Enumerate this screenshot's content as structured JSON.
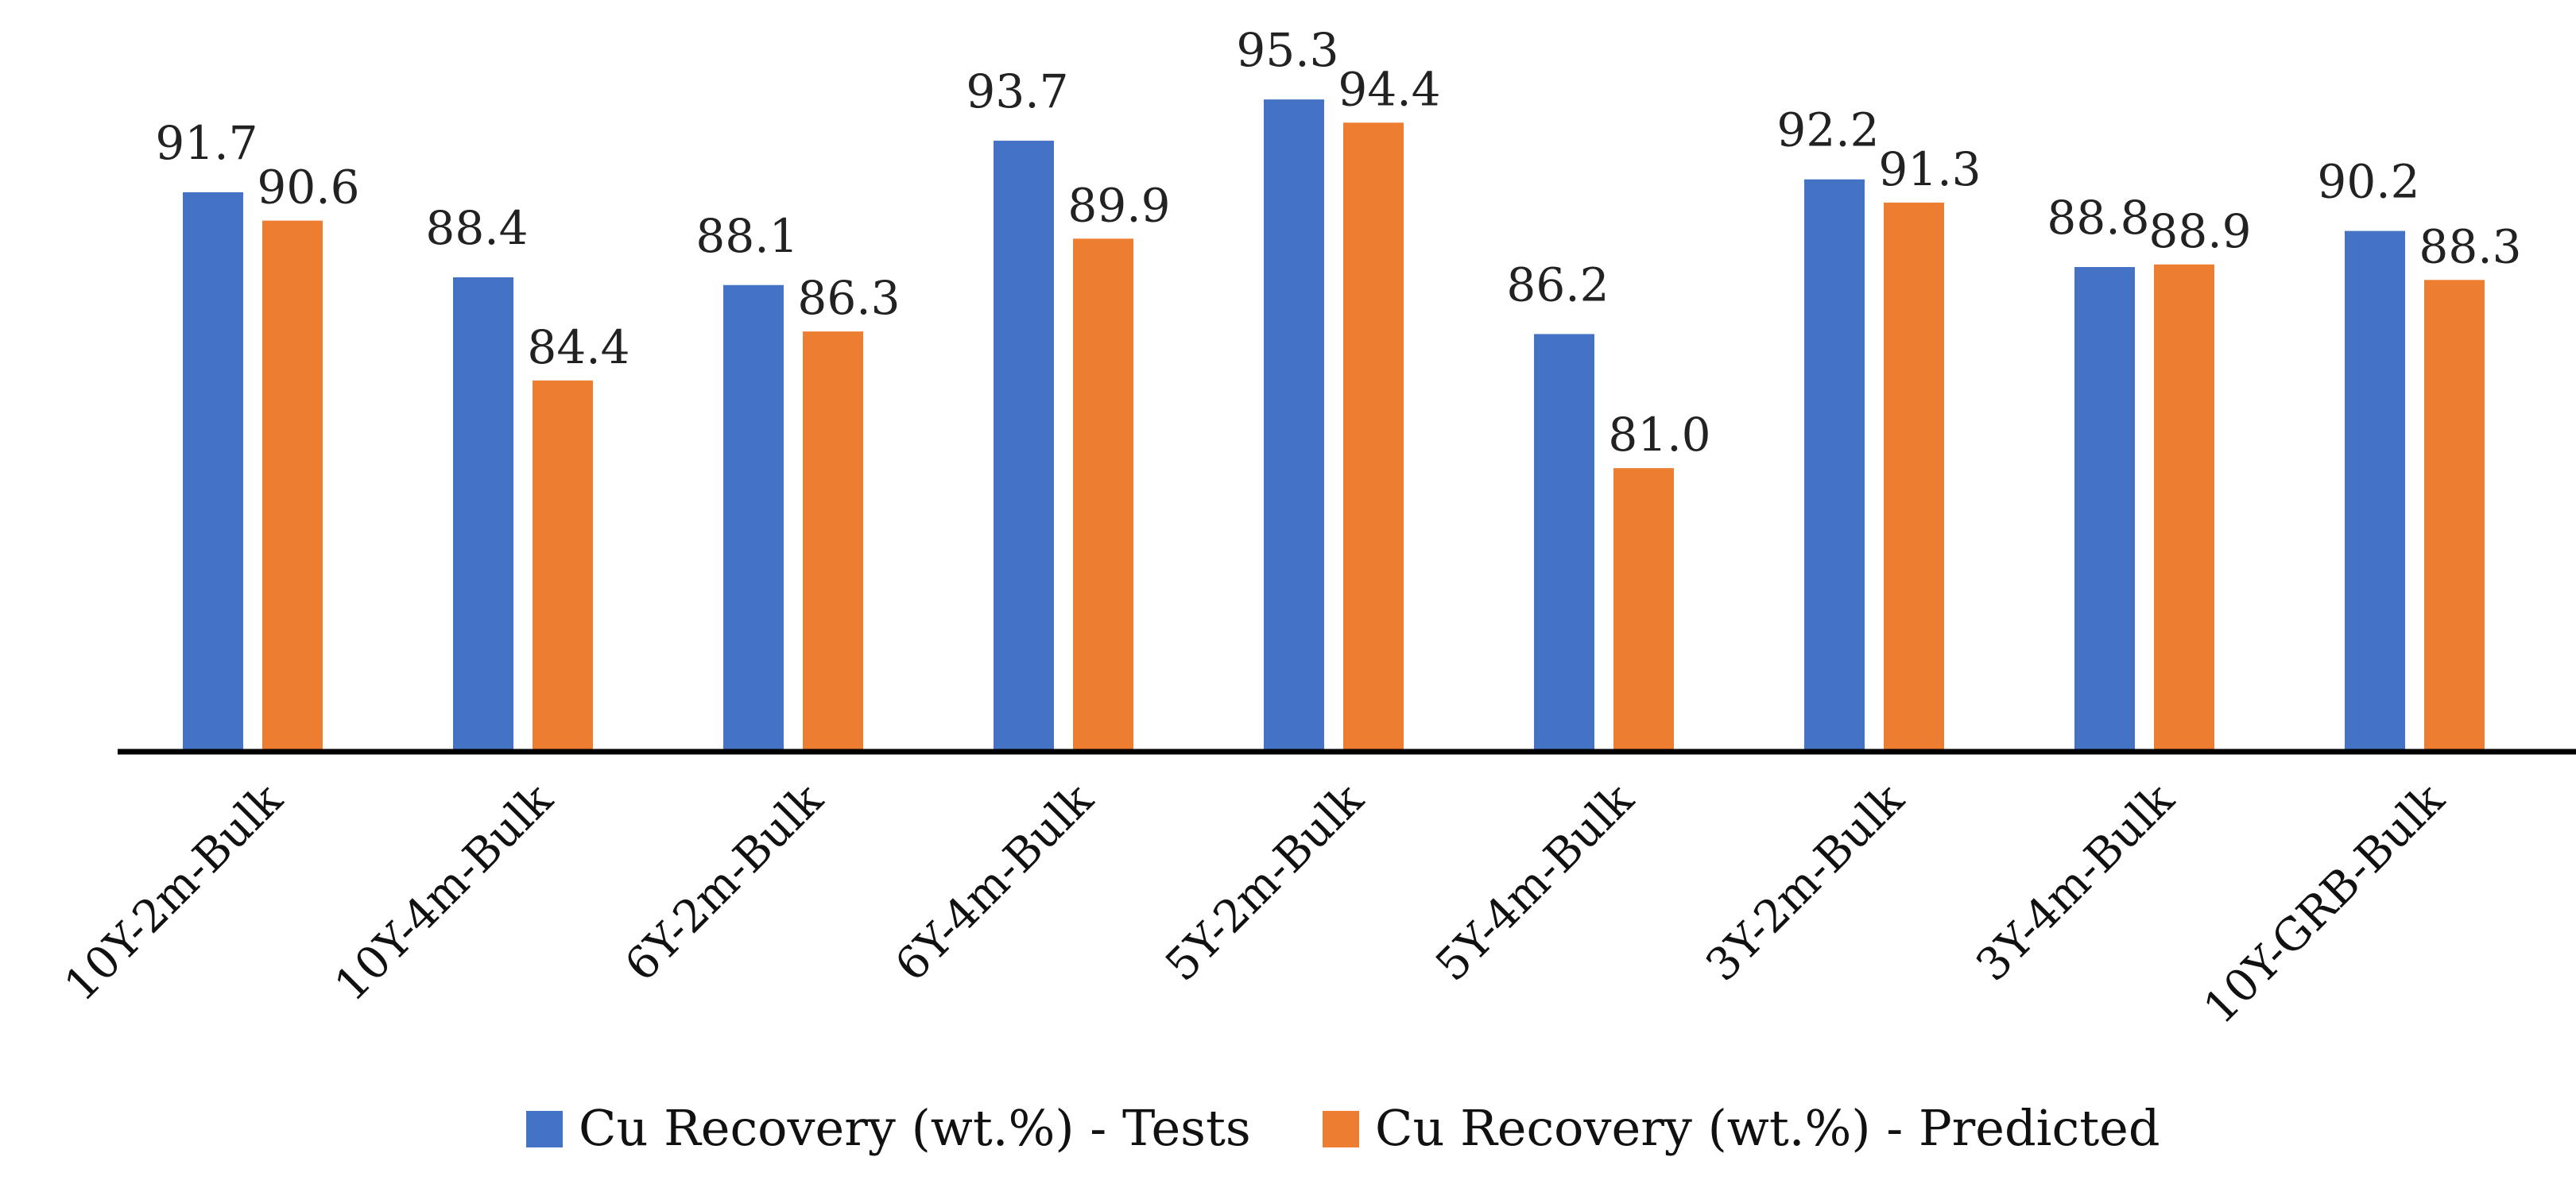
{
  "chart_data": {
    "type": "bar",
    "title": "",
    "xlabel": "",
    "ylabel": "",
    "ylim": [
      70,
      97
    ],
    "grid": false,
    "legend_position": "bottom-center",
    "categories": [
      "10Y-2m-Bulk",
      "10Y-4m-Bulk",
      "6Y-2m-Bulk",
      "6Y-4m-Bulk",
      "5Y-2m-Bulk",
      "5Y-4m-Bulk",
      "3Y-2m-Bulk",
      "3Y-4m-Bulk",
      "10Y-GRB-Bulk"
    ],
    "series": [
      {
        "name": "Cu Recovery (wt.%) - Tests",
        "color": "#4472C4",
        "values": [
          91.7,
          88.4,
          88.1,
          93.7,
          95.3,
          86.2,
          92.2,
          88.8,
          90.2
        ],
        "labels": [
          "91.7",
          "88.4",
          "88.1",
          "93.7",
          "95.3",
          "86.2",
          "92.2",
          "88.8",
          "90.2"
        ]
      },
      {
        "name": "Cu Recovery (wt.%) - Predicted",
        "color": "#ED7D31",
        "values": [
          90.6,
          84.4,
          86.3,
          89.9,
          94.4,
          81.0,
          91.3,
          88.9,
          88.3
        ],
        "labels": [
          "90.6",
          "84.4",
          "86.3",
          "89.9",
          "94.4",
          "81.0",
          "91.3",
          "88.9",
          "88.3"
        ]
      }
    ]
  }
}
